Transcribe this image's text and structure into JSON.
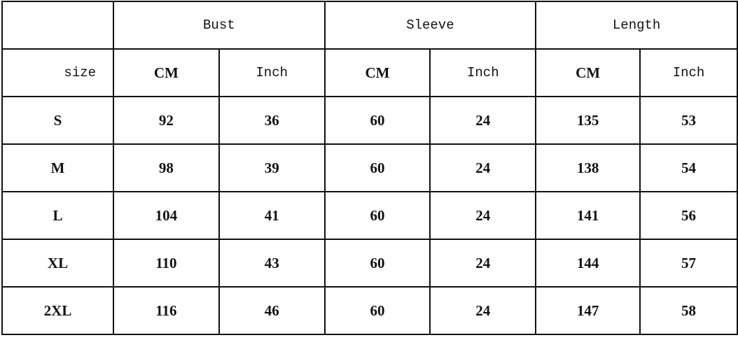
{
  "table": {
    "groups": [
      "Bust",
      "Sleeve",
      "Length"
    ],
    "size_label": "size",
    "units": [
      "CM",
      "Inch",
      "CM",
      "Inch",
      "CM",
      "Inch"
    ],
    "rows": [
      [
        "S",
        "92",
        "36",
        "60",
        "24",
        "135",
        "53"
      ],
      [
        "M",
        "98",
        "39",
        "60",
        "24",
        "138",
        "54"
      ],
      [
        "L",
        "104",
        "41",
        "60",
        "24",
        "141",
        "56"
      ],
      [
        "XL",
        "110",
        "43",
        "60",
        "24",
        "144",
        "57"
      ],
      [
        "2XL",
        "116",
        "46",
        "60",
        "24",
        "147",
        "58"
      ]
    ]
  }
}
